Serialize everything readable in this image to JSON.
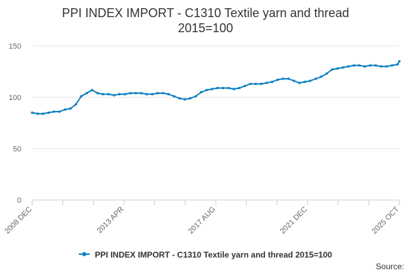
{
  "chart_data": {
    "type": "line",
    "title": "PPI INDEX IMPORT - C1310 Textile yarn and thread",
    "subtitle": "2015=100",
    "xlabel": "",
    "ylabel": "",
    "ylim": [
      0,
      150
    ],
    "yticks": [
      "0",
      "50",
      "100",
      "150"
    ],
    "xtick_labels": [
      "2008 DEC",
      "2013 APR",
      "2017 AUG",
      "2021 DEC",
      "2025 OCT"
    ],
    "grid": "horizontal",
    "legend_position": "bottom",
    "series": [
      {
        "name": "PPI INDEX IMPORT - C1310 Textile yarn and thread 2015=100",
        "color": "#0b7fc2",
        "points": [
          [
            "2008-12",
            85
          ],
          [
            "2009-03",
            84
          ],
          [
            "2009-06",
            84
          ],
          [
            "2009-09",
            85
          ],
          [
            "2009-12",
            86
          ],
          [
            "2010-03",
            86
          ],
          [
            "2010-06",
            88
          ],
          [
            "2010-09",
            89
          ],
          [
            "2010-12",
            93
          ],
          [
            "2011-03",
            101
          ],
          [
            "2011-06",
            104
          ],
          [
            "2011-09",
            107
          ],
          [
            "2011-12",
            104
          ],
          [
            "2012-03",
            103
          ],
          [
            "2012-06",
            103
          ],
          [
            "2012-09",
            102
          ],
          [
            "2012-12",
            103
          ],
          [
            "2013-03",
            103
          ],
          [
            "2013-06",
            104
          ],
          [
            "2013-09",
            104
          ],
          [
            "2013-12",
            104
          ],
          [
            "2014-03",
            103
          ],
          [
            "2014-06",
            103
          ],
          [
            "2014-09",
            104
          ],
          [
            "2014-12",
            104
          ],
          [
            "2015-03",
            103
          ],
          [
            "2015-06",
            101
          ],
          [
            "2015-09",
            99
          ],
          [
            "2015-12",
            98
          ],
          [
            "2016-03",
            99
          ],
          [
            "2016-06",
            101
          ],
          [
            "2016-09",
            105
          ],
          [
            "2016-12",
            107
          ],
          [
            "2017-03",
            108
          ],
          [
            "2017-06",
            109
          ],
          [
            "2017-09",
            109
          ],
          [
            "2017-12",
            109
          ],
          [
            "2018-03",
            108
          ],
          [
            "2018-06",
            109
          ],
          [
            "2018-09",
            111
          ],
          [
            "2018-12",
            113
          ],
          [
            "2019-03",
            113
          ],
          [
            "2019-06",
            113
          ],
          [
            "2019-09",
            114
          ],
          [
            "2019-12",
            115
          ],
          [
            "2020-03",
            117
          ],
          [
            "2020-06",
            118
          ],
          [
            "2020-09",
            118
          ],
          [
            "2020-12",
            116
          ],
          [
            "2021-03",
            114
          ],
          [
            "2021-06",
            115
          ],
          [
            "2021-09",
            116
          ],
          [
            "2021-12",
            118
          ],
          [
            "2022-03",
            120
          ],
          [
            "2022-06",
            123
          ],
          [
            "2022-09",
            127
          ],
          [
            "2022-12",
            128
          ],
          [
            "2023-03",
            129
          ],
          [
            "2023-06",
            130
          ],
          [
            "2023-09",
            131
          ],
          [
            "2023-12",
            131
          ],
          [
            "2024-03",
            130
          ],
          [
            "2024-06",
            131
          ],
          [
            "2024-09",
            131
          ],
          [
            "2024-12",
            130
          ],
          [
            "2025-03",
            130
          ],
          [
            "2025-06",
            131
          ],
          [
            "2025-09",
            132
          ],
          [
            "2025-10",
            135
          ]
        ]
      }
    ]
  },
  "footer": {
    "source_label": "Source:"
  }
}
